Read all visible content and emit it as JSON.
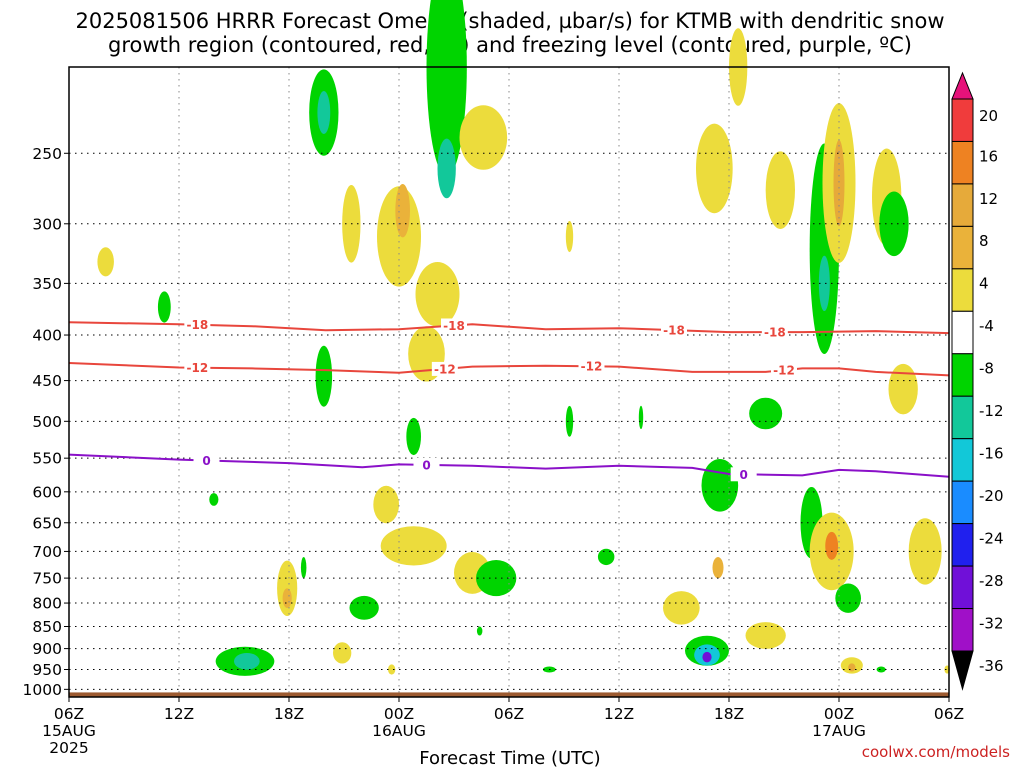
{
  "title": {
    "line1": "2025081506 HRRR Forecast Omega (shaded, µbar/s) for KTMB with dendritic snow",
    "line2": "growth region (contoured, red, ºC) and freezing level (contoured, purple, ºC)"
  },
  "credit": "coolwx.com/models",
  "colors": {
    "ground": "#9c5a30",
    "dgz_contour": "#e8463c",
    "freezing_contour": "#8a10c8",
    "grid": "#888888"
  },
  "chart_data": {
    "type": "heatmap",
    "title": "2025081506 HRRR Forecast Omega (shaded, µbar/s) for KTMB with dendritic snow growth region (contoured, red, ºC) and freezing level (contoured, purple, ºC)",
    "xlabel": "Forecast Time (UTC)",
    "ylabel": "",
    "x_unit": "hours since 2025-08-15 06Z",
    "xlim": [
      0,
      48
    ],
    "y_unit": "mb",
    "y_scale": "log-pressure (inverted)",
    "ylim": [
      1020,
      200
    ],
    "grid": true,
    "x_ticks": [
      {
        "value": 0,
        "label": "06Z",
        "sub1": "15AUG",
        "sub2": "2025"
      },
      {
        "value": 6,
        "label": "12Z",
        "sub1": "",
        "sub2": ""
      },
      {
        "value": 12,
        "label": "18Z",
        "sub1": "",
        "sub2": ""
      },
      {
        "value": 18,
        "label": "00Z",
        "sub1": "16AUG",
        "sub2": ""
      },
      {
        "value": 24,
        "label": "06Z",
        "sub1": "",
        "sub2": ""
      },
      {
        "value": 30,
        "label": "12Z",
        "sub1": "",
        "sub2": ""
      },
      {
        "value": 36,
        "label": "18Z",
        "sub1": "",
        "sub2": ""
      },
      {
        "value": 42,
        "label": "00Z",
        "sub1": "17AUG",
        "sub2": ""
      },
      {
        "value": 48,
        "label": "06Z",
        "sub1": "",
        "sub2": ""
      }
    ],
    "y_ticks": [
      {
        "value": 250,
        "label": "250"
      },
      {
        "value": 300,
        "label": "300"
      },
      {
        "value": 350,
        "label": "350"
      },
      {
        "value": 400,
        "label": "400"
      },
      {
        "value": 450,
        "label": "450"
      },
      {
        "value": 500,
        "label": "500"
      },
      {
        "value": 550,
        "label": "550"
      },
      {
        "value": 600,
        "label": "600"
      },
      {
        "value": 650,
        "label": "650"
      },
      {
        "value": 700,
        "label": "700"
      },
      {
        "value": 750,
        "label": "750"
      },
      {
        "value": 800,
        "label": "800"
      },
      {
        "value": 850,
        "label": "850"
      },
      {
        "value": 900,
        "label": "900"
      },
      {
        "value": 950,
        "label": "950"
      },
      {
        "value": 1000,
        "label": "1000"
      }
    ],
    "colorbar": {
      "levels": [
        {
          "label": "20",
          "color": "#f03c3c"
        },
        {
          "label": "16",
          "color": "#ee8222"
        },
        {
          "label": "12",
          "color": "#e6aa3a"
        },
        {
          "label": "8",
          "color": "#eab23a"
        },
        {
          "label": "4",
          "color": "#ecdc3c"
        },
        {
          "label": "-4",
          "color": "#ffffff"
        },
        {
          "label": "-8",
          "color": "#00d400"
        },
        {
          "label": "-12",
          "color": "#12c89a"
        },
        {
          "label": "-16",
          "color": "#12c8d8"
        },
        {
          "label": "-20",
          "color": "#1a8cff"
        },
        {
          "label": "-24",
          "color": "#2020ee"
        },
        {
          "label": "-28",
          "color": "#7010d8"
        },
        {
          "label": "-32",
          "color": "#a010c8"
        },
        {
          "label": "-36",
          "color": "#b4b4b4"
        }
      ],
      "top_arrow_color": "#e6127a",
      "bottom_arrow_color": "#000000"
    },
    "series": [
      {
        "name": "-18",
        "type": "contour",
        "color": "#e8463c",
        "points": [
          [
            0,
            387
          ],
          [
            6,
            389
          ],
          [
            10,
            391
          ],
          [
            14,
            395
          ],
          [
            18,
            394
          ],
          [
            22,
            389
          ],
          [
            26,
            394
          ],
          [
            30,
            393
          ],
          [
            36,
            397
          ],
          [
            40,
            397
          ],
          [
            44,
            396
          ],
          [
            48,
            398
          ]
        ],
        "labels_at": [
          7,
          21,
          33,
          38.5
        ]
      },
      {
        "name": "-12",
        "type": "contour",
        "color": "#e8463c",
        "points": [
          [
            0,
            430
          ],
          [
            6,
            435
          ],
          [
            10,
            436
          ],
          [
            14,
            438
          ],
          [
            18,
            441
          ],
          [
            22,
            434
          ],
          [
            26,
            433
          ],
          [
            30,
            434
          ],
          [
            34,
            440
          ],
          [
            38,
            440
          ],
          [
            40,
            436
          ],
          [
            42,
            436
          ],
          [
            44,
            440
          ],
          [
            48,
            444
          ]
        ],
        "labels_at": [
          7,
          20.5,
          28.5,
          39
        ]
      },
      {
        "name": "0",
        "type": "contour",
        "color": "#8a10c8",
        "points": [
          [
            0,
            545
          ],
          [
            6,
            552
          ],
          [
            12,
            557
          ],
          [
            16,
            563
          ],
          [
            18,
            559
          ],
          [
            22,
            561
          ],
          [
            26,
            565
          ],
          [
            30,
            561
          ],
          [
            34,
            564
          ],
          [
            36,
            573
          ],
          [
            40,
            575
          ],
          [
            42,
            567
          ],
          [
            44,
            569
          ],
          [
            48,
            577
          ]
        ],
        "labels_at": [
          7.5,
          19.5,
          36.8
        ]
      }
    ],
    "shaded_regions": [
      {
        "v": 4,
        "x": 2.0,
        "p": 331,
        "w": 0.45,
        "h": 25
      },
      {
        "v": -8,
        "x": 5.2,
        "p": 372,
        "w": 0.35,
        "h": 30
      },
      {
        "v": -8,
        "x": 7.9,
        "p": 612,
        "w": 0.25,
        "h": 20
      },
      {
        "v": -8,
        "x": 9.6,
        "p": 930,
        "w": 1.6,
        "h": 70
      },
      {
        "v": -12,
        "x": 9.7,
        "p": 930,
        "w": 0.7,
        "h": 40
      },
      {
        "v": 4,
        "x": 11.9,
        "p": 770,
        "w": 0.55,
        "h": 110
      },
      {
        "v": 8,
        "x": 11.9,
        "p": 790,
        "w": 0.25,
        "h": 40
      },
      {
        "v": -8,
        "x": 12.8,
        "p": 730,
        "w": 0.15,
        "h": 40
      },
      {
        "v": -8,
        "x": 13.9,
        "p": 225,
        "w": 0.8,
        "h": 50
      },
      {
        "v": -12,
        "x": 13.9,
        "p": 225,
        "w": 0.35,
        "h": 25
      },
      {
        "v": -8,
        "x": 13.9,
        "p": 445,
        "w": 0.45,
        "h": 70
      },
      {
        "v": 4,
        "x": 15.4,
        "p": 300,
        "w": 0.5,
        "h": 60
      },
      {
        "v": 4,
        "x": 14.9,
        "p": 910,
        "w": 0.5,
        "h": 50
      },
      {
        "v": -8,
        "x": 16.1,
        "p": 810,
        "w": 0.8,
        "h": 50
      },
      {
        "v": 4,
        "x": 17.3,
        "p": 620,
        "w": 0.7,
        "h": 60
      },
      {
        "v": 4,
        "x": 18.8,
        "p": 690,
        "w": 1.8,
        "h": 70
      },
      {
        "v": -8,
        "x": 18.8,
        "p": 520,
        "w": 0.4,
        "h": 50
      },
      {
        "v": 4,
        "x": 18.0,
        "p": 310,
        "w": 1.2,
        "h": 80
      },
      {
        "v": 8,
        "x": 18.2,
        "p": 290,
        "w": 0.4,
        "h": 40
      },
      {
        "v": 4,
        "x": 19.5,
        "p": 420,
        "w": 1.0,
        "h": 60
      },
      {
        "v": 4,
        "x": 20.1,
        "p": 360,
        "w": 1.2,
        "h": 60
      },
      {
        "v": -8,
        "x": 20.6,
        "p": 200,
        "w": 1.1,
        "h": 110
      },
      {
        "v": -12,
        "x": 20.6,
        "p": 260,
        "w": 0.5,
        "h": 40
      },
      {
        "v": 4,
        "x": 22.6,
        "p": 240,
        "w": 1.3,
        "h": 40
      },
      {
        "v": 4,
        "x": 22.0,
        "p": 740,
        "w": 1.0,
        "h": 80
      },
      {
        "v": -8,
        "x": 23.3,
        "p": 750,
        "w": 1.1,
        "h": 70
      },
      {
        "v": -8,
        "x": 22.4,
        "p": 860,
        "w": 0.15,
        "h": 20
      },
      {
        "v": 4,
        "x": 17.6,
        "p": 950,
        "w": 0.2,
        "h": 25
      },
      {
        "v": 4,
        "x": 27.3,
        "p": 310,
        "w": 0.2,
        "h": 25
      },
      {
        "v": -8,
        "x": 26.2,
        "p": 950,
        "w": 0.35,
        "h": 15
      },
      {
        "v": -8,
        "x": 27.3,
        "p": 500,
        "w": 0.2,
        "h": 40
      },
      {
        "v": -8,
        "x": 29.3,
        "p": 710,
        "w": 0.45,
        "h": 30
      },
      {
        "v": -8,
        "x": 31.2,
        "p": 495,
        "w": 0.12,
        "h": 30
      },
      {
        "v": 4,
        "x": 33.4,
        "p": 810,
        "w": 1.0,
        "h": 70
      },
      {
        "v": 8,
        "x": 35.4,
        "p": 730,
        "w": 0.3,
        "h": 40
      },
      {
        "v": -8,
        "x": 35.5,
        "p": 590,
        "w": 1.0,
        "h": 80
      },
      {
        "v": -8,
        "x": 34.8,
        "p": 905,
        "w": 1.2,
        "h": 70
      },
      {
        "v": -16,
        "x": 34.8,
        "p": 915,
        "w": 0.7,
        "h": 50
      },
      {
        "v": -28,
        "x": 34.8,
        "p": 920,
        "w": 0.25,
        "h": 25
      },
      {
        "v": 4,
        "x": 35.2,
        "p": 260,
        "w": 1.0,
        "h": 60
      },
      {
        "v": 4,
        "x": 38.0,
        "p": 870,
        "w": 1.1,
        "h": 60
      },
      {
        "v": 4,
        "x": 36.5,
        "p": 200,
        "w": 0.5,
        "h": 40
      },
      {
        "v": 4,
        "x": 38.8,
        "p": 275,
        "w": 0.8,
        "h": 55
      },
      {
        "v": -8,
        "x": 38.0,
        "p": 490,
        "w": 0.9,
        "h": 40
      },
      {
        "v": -8,
        "x": 40.5,
        "p": 650,
        "w": 0.6,
        "h": 120
      },
      {
        "v": 4,
        "x": 41.6,
        "p": 700,
        "w": 1.2,
        "h": 140
      },
      {
        "v": 16,
        "x": 41.6,
        "p": 690,
        "w": 0.35,
        "h": 50
      },
      {
        "v": -8,
        "x": 41.2,
        "p": 320,
        "w": 0.8,
        "h": 170
      },
      {
        "v": -12,
        "x": 41.2,
        "p": 350,
        "w": 0.3,
        "h": 50
      },
      {
        "v": 4,
        "x": 42.0,
        "p": 270,
        "w": 0.9,
        "h": 110
      },
      {
        "v": 12,
        "x": 42.0,
        "p": 270,
        "w": 0.3,
        "h": 60
      },
      {
        "v": -8,
        "x": 42.5,
        "p": 790,
        "w": 0.7,
        "h": 60
      },
      {
        "v": 4,
        "x": 42.7,
        "p": 940,
        "w": 0.6,
        "h": 40
      },
      {
        "v": 12,
        "x": 42.7,
        "p": 945,
        "w": 0.2,
        "h": 20
      },
      {
        "v": 4,
        "x": 44.6,
        "p": 280,
        "w": 0.8,
        "h": 70
      },
      {
        "v": -8,
        "x": 45.0,
        "p": 300,
        "w": 0.8,
        "h": 50
      },
      {
        "v": 4,
        "x": 45.5,
        "p": 460,
        "w": 0.8,
        "h": 60
      },
      {
        "v": 4,
        "x": 46.7,
        "p": 700,
        "w": 0.9,
        "h": 120
      },
      {
        "v": -8,
        "x": 44.3,
        "p": 950,
        "w": 0.25,
        "h": 15
      },
      {
        "v": 4,
        "x": 47.9,
        "p": 950,
        "w": 0.15,
        "h": 20
      }
    ]
  }
}
